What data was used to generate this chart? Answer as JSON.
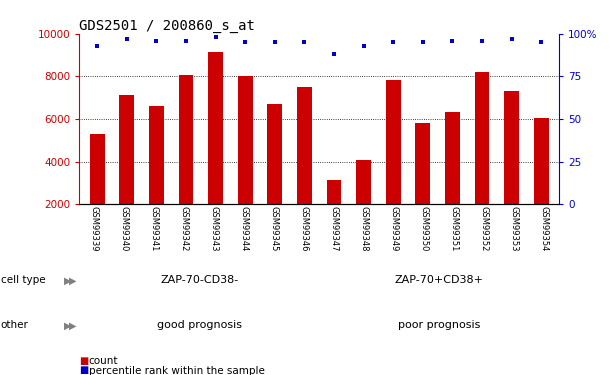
{
  "title": "GDS2501 / 200860_s_at",
  "samples": [
    "GSM99339",
    "GSM99340",
    "GSM99341",
    "GSM99342",
    "GSM99343",
    "GSM99344",
    "GSM99345",
    "GSM99346",
    "GSM99347",
    "GSM99348",
    "GSM99349",
    "GSM99350",
    "GSM99351",
    "GSM99352",
    "GSM99353",
    "GSM99354"
  ],
  "counts": [
    5300,
    7150,
    6600,
    8050,
    9150,
    8000,
    6700,
    7500,
    3150,
    4100,
    7850,
    5800,
    6350,
    8200,
    7300,
    6050
  ],
  "percentiles": [
    93,
    97,
    96,
    96,
    98,
    95,
    95,
    95,
    88,
    93,
    95,
    95,
    96,
    96,
    97,
    95
  ],
  "bar_color": "#cc0000",
  "dot_color": "#0000cc",
  "ylim_left": [
    2000,
    10000
  ],
  "ylim_right": [
    0,
    100
  ],
  "yticks_left": [
    2000,
    4000,
    6000,
    8000,
    10000
  ],
  "yticks_right": [
    0,
    25,
    50,
    75,
    100
  ],
  "ytick_labels_right": [
    "0",
    "25",
    "50",
    "75",
    "100%"
  ],
  "cell_type_labels": [
    "ZAP-70-CD38-",
    "ZAP-70+CD38+"
  ],
  "cell_type_colors": [
    "#ccffcc",
    "#66dd66"
  ],
  "other_labels": [
    "good prognosis",
    "poor prognosis"
  ],
  "other_colors": [
    "#ffaaff",
    "#ee66ee"
  ],
  "split_index": 8,
  "legend_items": [
    [
      "count",
      "#cc0000"
    ],
    [
      "percentile rank within the sample",
      "#0000cc"
    ]
  ],
  "row_label_cell_type": "cell type",
  "row_label_other": "other"
}
